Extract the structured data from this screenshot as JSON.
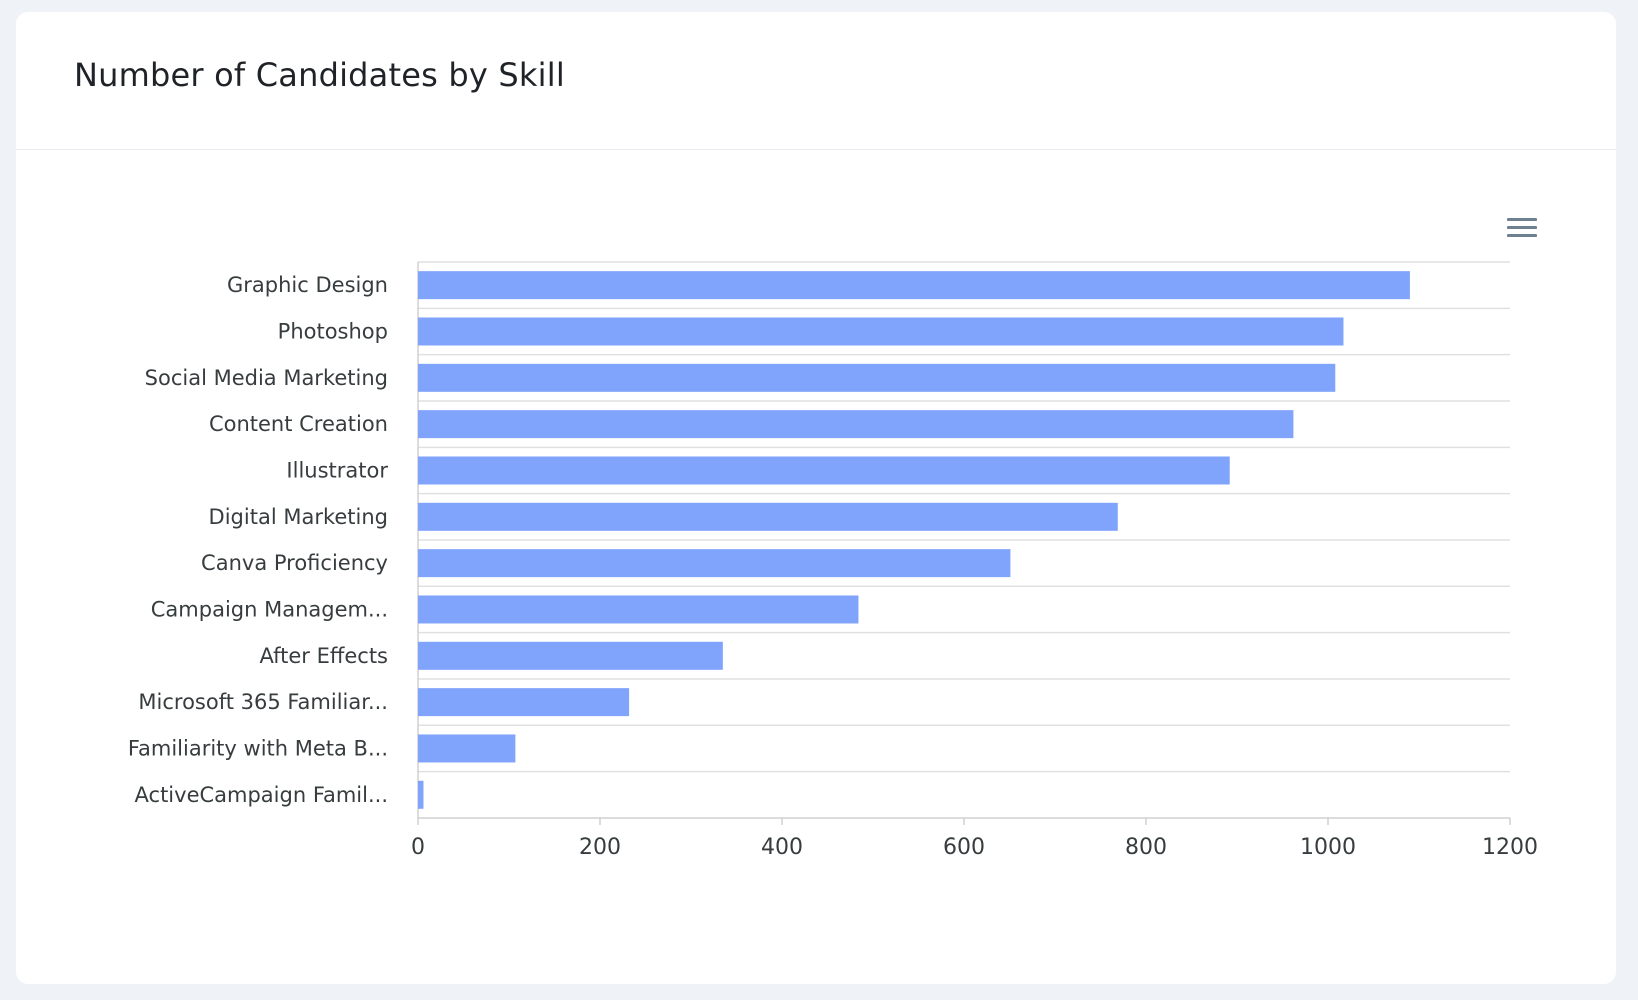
{
  "card": {
    "title": "Number of Candidates by Skill"
  },
  "toolbar": {
    "menu_icon": "hamburger-menu-icon"
  },
  "colors": {
    "bar": "#80a3fc",
    "grid": "#e0e0e0",
    "axis": "#d0d0d0",
    "text": "#373d3f",
    "menu_icon": "#6e8192"
  },
  "chart_data": {
    "type": "bar",
    "orientation": "horizontal",
    "title": "Number of Candidates by Skill",
    "categories": [
      "Graphic Design",
      "Photoshop",
      "Social Media Marketing",
      "Content Creation",
      "Illustrator",
      "Digital Marketing",
      "Canva Proficiency",
      "Campaign Managem...",
      "After Effects",
      "Microsoft 365 Familiar...",
      "Familiarity with Meta B...",
      "ActiveCampaign Famil..."
    ],
    "values": [
      1090,
      1017,
      1008,
      962,
      892,
      769,
      651,
      484,
      335,
      232,
      107,
      6
    ],
    "xlim": [
      0,
      1200
    ],
    "x_ticks": [
      "0",
      "200",
      "400",
      "600",
      "800",
      "1000",
      "1200"
    ],
    "xlabel": "",
    "ylabel": "",
    "grid": "horizontal",
    "legend": "none"
  }
}
